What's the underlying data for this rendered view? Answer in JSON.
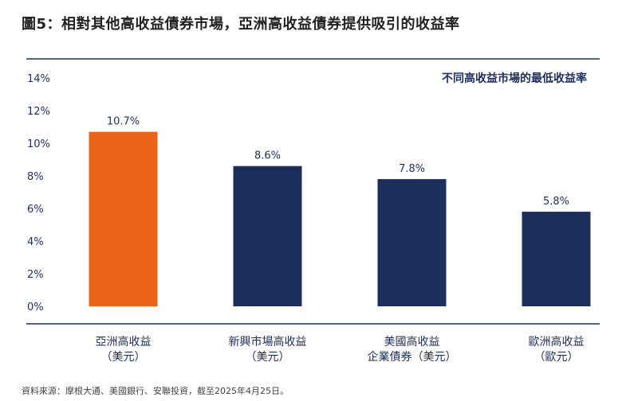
{
  "header": {
    "title": "圖5：相對其他高收益債券市場，亞洲高收益債券提供吸引的收益率"
  },
  "footer": {
    "source": "資料來源：摩根大通、美國銀行、安聯投資，截至2025年4月25日。"
  },
  "colors": {
    "highlight": "#ea6317",
    "primary": "#1c2f5a",
    "text": "#1f2d5c",
    "rule": "#1c2f5a"
  },
  "chart_data": {
    "type": "bar",
    "title": "不同高收益市場的最低收益率",
    "categories": [
      [
        "亞洲高收益",
        "（美元）"
      ],
      [
        "新興市場高收益",
        "（美元）"
      ],
      [
        "美國高收益",
        "企業債券（美元）"
      ],
      [
        "歐洲高收益",
        "（歐元）"
      ]
    ],
    "values": [
      10.7,
      8.6,
      7.8,
      5.8
    ],
    "value_labels": [
      "10.7%",
      "8.6%",
      "7.8%",
      "5.8%"
    ],
    "highlight_index": 0,
    "ylim": [
      0,
      14
    ],
    "yticks": [
      0,
      2,
      4,
      6,
      8,
      10,
      12,
      14
    ],
    "ytick_labels": [
      "0%",
      "2%",
      "4%",
      "6%",
      "8%",
      "10%",
      "12%",
      "14%"
    ],
    "xlabel": "",
    "ylabel": "",
    "grid": false,
    "legend_position": "top-right"
  }
}
